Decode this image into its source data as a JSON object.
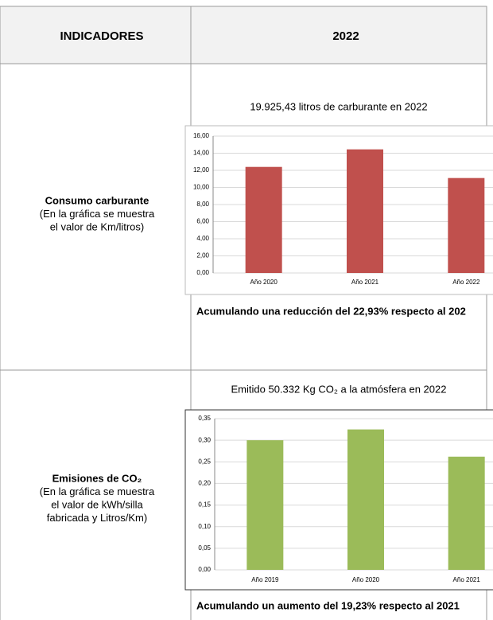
{
  "table": {
    "header": [
      "INDICADORES",
      "2022"
    ],
    "rows": [
      {
        "label": {
          "title": "Consumo carburante",
          "lines": [
            "(En la gráfica se muestra",
            "el valor de Km/litros)"
          ]
        },
        "chart": {
          "type": "bar",
          "title": "19.925,43 litros de carburante en 2022",
          "categories": [
            "Año 2020",
            "Año 2021",
            "Año 2022"
          ],
          "values": [
            12.4,
            14.45,
            11.1
          ],
          "color": "#c0504d",
          "ylim": [
            0,
            16
          ],
          "grid": true,
          "yticks": [
            {
              "value": 0,
              "label": "0,00"
            },
            {
              "value": 2,
              "label": "2,00"
            },
            {
              "value": 4,
              "label": "4,00"
            },
            {
              "value": 6,
              "label": "6,00"
            },
            {
              "value": 8,
              "label": "8,00"
            },
            {
              "value": 10,
              "label": "10,00"
            },
            {
              "value": 12,
              "label": "12,00"
            },
            {
              "value": 14,
              "label": "14,00"
            },
            {
              "value": 16,
              "label": "16,00"
            }
          ]
        },
        "caption": "Acumulando una reducción del 22,93% respecto al 202"
      },
      {
        "label": {
          "title": "Emisiones de CO₂",
          "lines": [
            "(En la gráfica se muestra",
            "el valor de kWh/silla",
            "fabricada y Litros/Km)"
          ]
        },
        "chart": {
          "type": "bar",
          "title": "Emitido 50.332 Kg CO₂ a la atmósfera en 2022",
          "categories": [
            "Año 2019",
            "Año 2020",
            "Año 2021"
          ],
          "values": [
            0.3,
            0.325,
            0.262
          ],
          "color": "#9bbb59",
          "ylim": [
            0,
            0.35
          ],
          "grid": true,
          "yticks": [
            {
              "value": 0,
              "label": "0,00"
            },
            {
              "value": 0.05,
              "label": "0,05"
            },
            {
              "value": 0.1,
              "label": "0,10"
            },
            {
              "value": 0.15,
              "label": "0,15"
            },
            {
              "value": 0.2,
              "label": "0,20"
            },
            {
              "value": 0.25,
              "label": "0,25"
            },
            {
              "value": 0.3,
              "label": "0,30"
            },
            {
              "value": 0.35,
              "label": "0,35"
            }
          ]
        },
        "caption": "Acumulando un aumento del 19,23% respecto al 2021"
      }
    ]
  }
}
